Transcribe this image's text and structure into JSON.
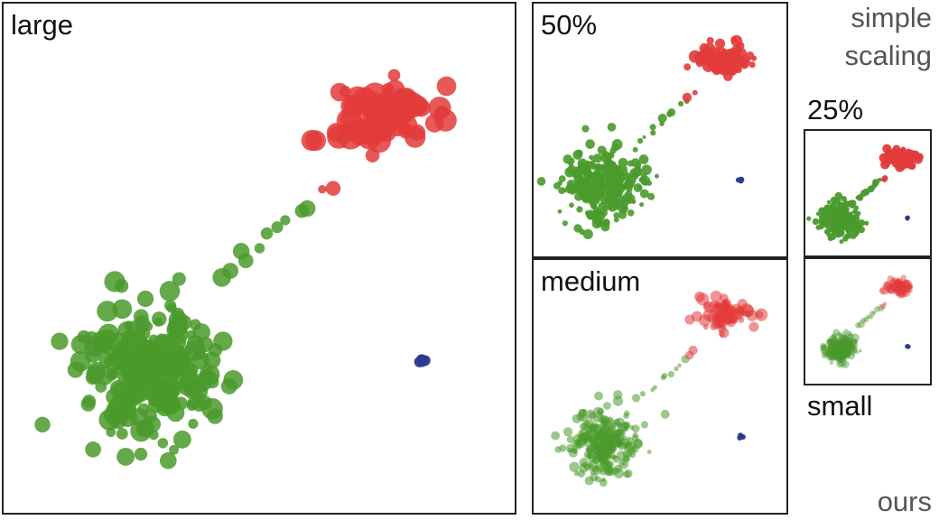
{
  "panels": [
    {
      "id": "large",
      "label": "large",
      "spread": 1.0,
      "alpha": 0.85
    },
    {
      "id": "p50",
      "label": "50%",
      "spread": 1.1,
      "alpha": 0.9
    },
    {
      "id": "medium",
      "label": "medium",
      "spread": 1.0,
      "alpha": 0.55
    },
    {
      "id": "p25",
      "label": "25%",
      "spread": 1.15,
      "alpha": 0.95
    },
    {
      "id": "small",
      "label": "small",
      "spread": 0.8,
      "alpha": 0.45
    }
  ],
  "side_labels": {
    "simple": "simple",
    "scaling": "scaling",
    "ours": "ours"
  },
  "colors": {
    "green": "#4a9a2c",
    "red": "#e33b3b",
    "blue": "#2a3b8f",
    "border": "#222222"
  }
}
